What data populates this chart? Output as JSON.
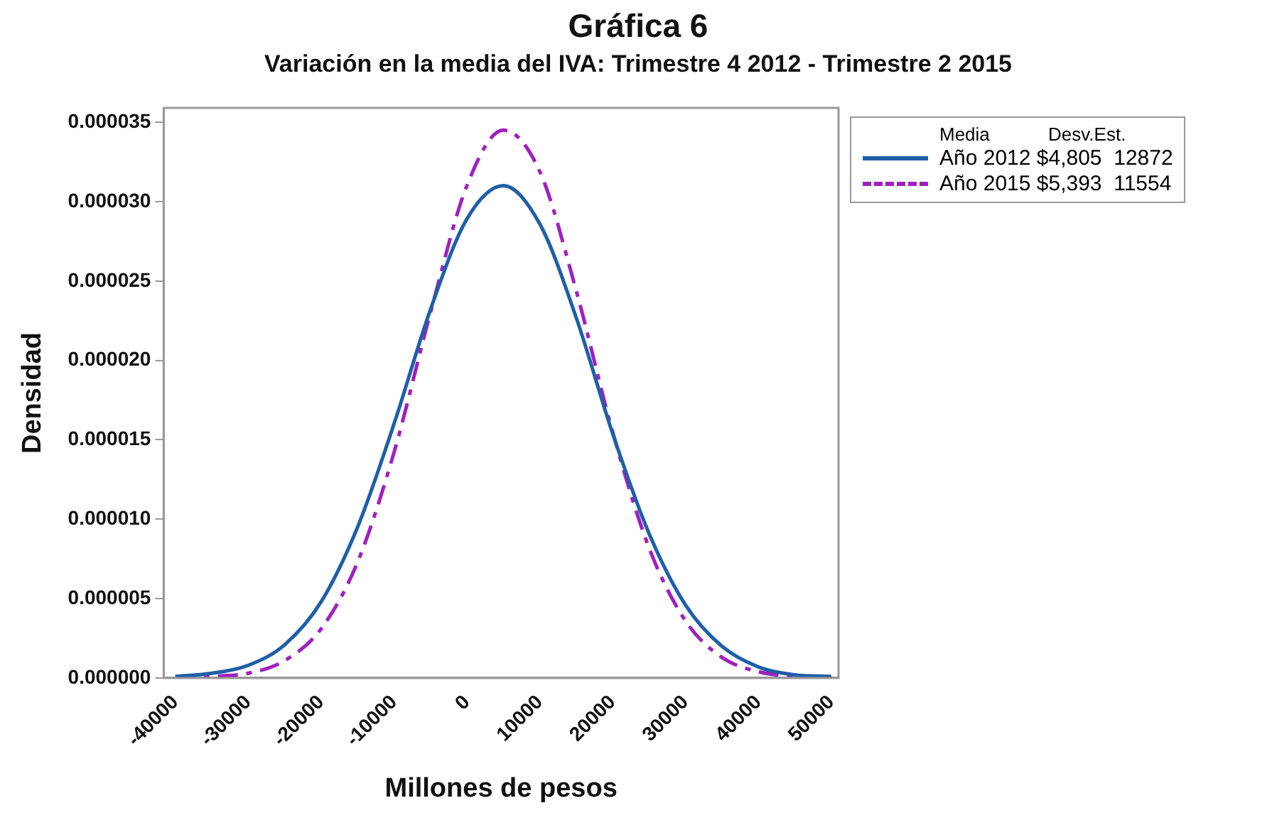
{
  "chart_data": {
    "type": "line",
    "title": "Gráfica 6",
    "subtitle": "Variación en la media del IVA: Trimestre 4 2012 - Trimestre 2 2015",
    "xlabel": "Millones de pesos",
    "ylabel": "Densidad",
    "legend_title": "Media",
    "annotations": [
      "Desv.Est."
    ],
    "x": [
      -40000,
      -35000,
      -30000,
      -25000,
      -20000,
      -15000,
      -10000,
      -5000,
      0,
      5000,
      10000,
      15000,
      20000,
      25000,
      30000,
      35000,
      40000,
      45000,
      50000
    ],
    "xlim": [
      -41600,
      51000
    ],
    "xticks": [
      -40000,
      -30000,
      -20000,
      -10000,
      0,
      10000,
      20000,
      30000,
      40000,
      50000
    ],
    "ylim": [
      0,
      3.59e-05
    ],
    "yticks": [
      {
        "value": 0,
        "label": "0.000000"
      },
      {
        "value": 5e-06,
        "label": "0.000005"
      },
      {
        "value": 1e-05,
        "label": "0.000010"
      },
      {
        "value": 1.5e-05,
        "label": "0.000015"
      },
      {
        "value": 2e-05,
        "label": "0.000020"
      },
      {
        "value": 2.5e-05,
        "label": "0.000025"
      },
      {
        "value": 3e-05,
        "label": "0.000030"
      },
      {
        "value": 3.5e-05,
        "label": "0.000035"
      }
    ],
    "grid": false,
    "legend": "right",
    "marker": "none",
    "series": [
      {
        "name": "Año 2012 $4,805  12872",
        "color": "#1f5fa8",
        "line_style": "solid",
        "values": [
          1e-07,
          3e-07,
          8e-07,
          2.1e-06,
          4.8e-06,
          9.5e-06,
          1.6e-05,
          2.32e-05,
          2.89e-05,
          3.1e-05,
          2.86e-05,
          2.27e-05,
          1.54e-05,
          9.1e-06,
          4.6e-06,
          2e-06,
          7e-07,
          2e-07,
          1e-07
        ]
      },
      {
        "name": "Año 2015 $5,393  11554",
        "color": "#a020c0",
        "line_style": "dashed",
        "values": [
          0,
          1e-07,
          3e-07,
          1.1e-06,
          3.1e-06,
          7.3e-06,
          1.42e-05,
          2.3e-05,
          3.1e-05,
          3.45e-05,
          3.19e-05,
          2.44e-05,
          1.55e-05,
          8.2e-06,
          3.6e-06,
          1.3e-06,
          4e-07,
          1e-07,
          0
        ]
      }
    ]
  }
}
